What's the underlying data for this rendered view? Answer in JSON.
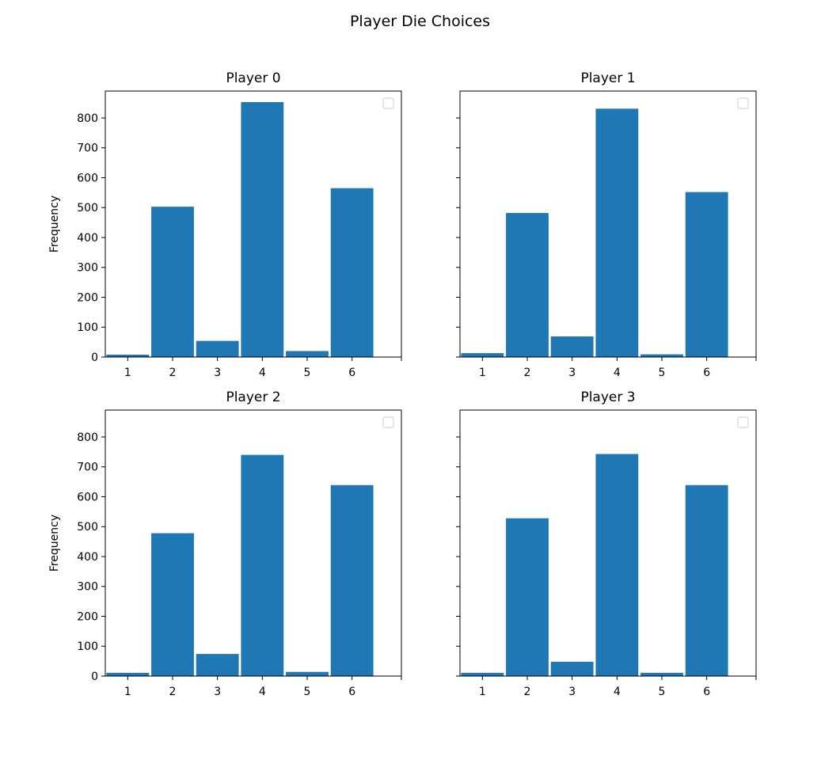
{
  "figure": {
    "suptitle": "Player Die Choices"
  },
  "chart_data": [
    {
      "type": "bar",
      "title": "Player 0",
      "categories": [
        "1",
        "2",
        "3",
        "4",
        "5",
        "6"
      ],
      "values": [
        8,
        503,
        54,
        853,
        20,
        565
      ],
      "xlabel": "",
      "ylabel": "Frequency",
      "ylim": [
        0,
        890
      ],
      "yticks": [
        0,
        100,
        200,
        300,
        400,
        500,
        600,
        700,
        800
      ],
      "color": "#1f77b4",
      "legend": "top-right (empty)",
      "grid": false
    },
    {
      "type": "bar",
      "title": "Player 1",
      "categories": [
        "1",
        "2",
        "3",
        "4",
        "5",
        "6"
      ],
      "values": [
        13,
        482,
        69,
        831,
        9,
        552
      ],
      "xlabel": "",
      "ylabel": "",
      "ylim": [
        0,
        890
      ],
      "yticks": [
        0,
        100,
        200,
        300,
        400,
        500,
        600,
        700,
        800
      ],
      "color": "#1f77b4",
      "legend": "top-right (empty)",
      "grid": false
    },
    {
      "type": "bar",
      "title": "Player 2",
      "categories": [
        "1",
        "2",
        "3",
        "4",
        "5",
        "6"
      ],
      "values": [
        11,
        478,
        74,
        740,
        14,
        639
      ],
      "xlabel": "",
      "ylabel": "Frequency",
      "ylim": [
        0,
        890
      ],
      "yticks": [
        0,
        100,
        200,
        300,
        400,
        500,
        600,
        700,
        800
      ],
      "color": "#1f77b4",
      "legend": "top-right (empty)",
      "grid": false
    },
    {
      "type": "bar",
      "title": "Player 3",
      "categories": [
        "1",
        "2",
        "3",
        "4",
        "5",
        "6"
      ],
      "values": [
        11,
        528,
        48,
        743,
        11,
        639
      ],
      "xlabel": "",
      "ylabel": "",
      "ylim": [
        0,
        890
      ],
      "yticks": [
        0,
        100,
        200,
        300,
        400,
        500,
        600,
        700,
        800
      ],
      "color": "#1f77b4",
      "legend": "top-right (empty)",
      "grid": false
    }
  ]
}
